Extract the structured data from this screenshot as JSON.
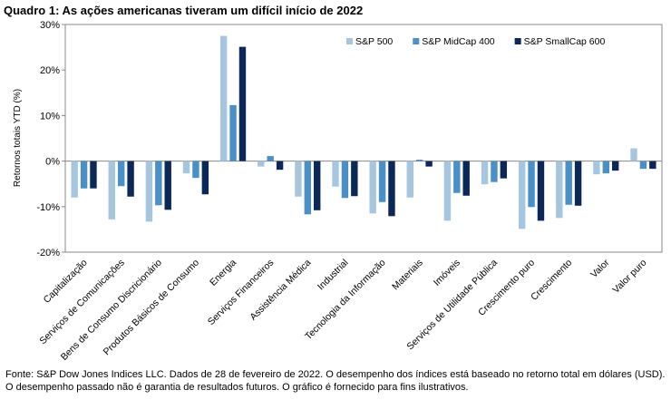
{
  "chart_data": {
    "type": "bar",
    "title": "Quadro 1: As ações americanas tiveram um difícil início de 2022",
    "y_label": "Retornos totais YTD (%)",
    "categories": [
      "Capitalização",
      "Serviços de Comunicações",
      "Bens de Consumo Discricionário",
      "Produtos Básicos de Consumo",
      "Energia",
      "Serviços Financeiros",
      "Assistência Médica",
      "Industrial",
      "Tecnologia da Informação",
      "Materiais",
      "Imóveis",
      "Serviços de Utilidade Pública",
      "Crescimento puro",
      "Crescimento",
      "Valor",
      "Valor puro"
    ],
    "series": [
      {
        "name": "S&P 500",
        "color": "#a6c6e0",
        "values": [
          -8.0,
          -12.8,
          -13.3,
          -2.7,
          27.5,
          -1.2,
          -7.8,
          -5.6,
          -11.5,
          -8.0,
          -13.1,
          -5.1,
          -14.9,
          -12.5,
          -2.9,
          2.8
        ]
      },
      {
        "name": "S&P MidCap 400",
        "color": "#4a8fc6",
        "values": [
          -6.0,
          -5.5,
          -9.7,
          -3.7,
          12.3,
          1.1,
          -11.7,
          -8.1,
          -9.0,
          0.3,
          -7.0,
          -4.6,
          -10.1,
          -9.6,
          -2.7,
          -1.7
        ]
      },
      {
        "name": "S&P SmallCap 600",
        "color": "#0c2858",
        "values": [
          -6.0,
          -7.8,
          -10.7,
          -7.3,
          25.1,
          -1.9,
          -10.8,
          -7.7,
          -12.1,
          -1.2,
          -7.6,
          -3.8,
          -13.1,
          -9.8,
          -2.1,
          -1.7
        ]
      }
    ],
    "ylim": [
      -20,
      30
    ],
    "yticks": [
      {
        "value": -20,
        "label": "-20%"
      },
      {
        "value": -10,
        "label": "-10%"
      },
      {
        "value": 0,
        "label": "0%"
      },
      {
        "value": 10,
        "label": "10%"
      },
      {
        "value": 20,
        "label": "20%"
      },
      {
        "value": 30,
        "label": "30%"
      }
    ],
    "legend": "top-right",
    "source": "Fonte: S&P Dow Jones Indices LLC. Dados de 28 de fevereiro de 2022. O desempenho dos índices está baseado no retorno total em dólares (USD). O desempenho passado não é garantia de resultados futuros. O gráfico é fornecido para fins ilustrativos."
  }
}
